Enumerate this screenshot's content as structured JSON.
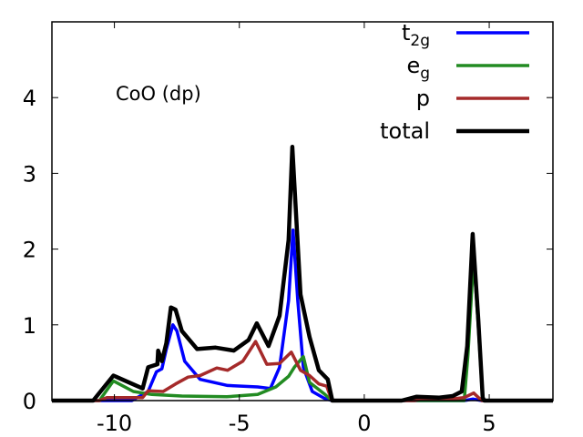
{
  "chart_data": {
    "type": "line",
    "title": "CoO (dp)",
    "xlabel": "",
    "ylabel": "",
    "xlim": [
      -12.5,
      7.55
    ],
    "ylim": [
      0,
      5
    ],
    "grid": false,
    "legend_placement": "top-right",
    "x_ticks": [
      -10,
      -5,
      0,
      5
    ],
    "x_tick_labels": [
      "-10",
      "-5",
      "0",
      "5"
    ],
    "y_ticks": [
      0,
      1,
      2,
      3,
      4
    ],
    "y_tick_labels": [
      "0",
      "1",
      "2",
      "3",
      "4"
    ],
    "series": [
      {
        "name": "t2g",
        "label_main": "t",
        "label_sub": "2g",
        "color": "#0000ff",
        "points": [
          [
            -12.5,
            0
          ],
          [
            -9.3,
            0
          ],
          [
            -8.65,
            0.12
          ],
          [
            -8.32,
            0.38
          ],
          [
            -8.1,
            0.42
          ],
          [
            -7.92,
            0.68
          ],
          [
            -7.66,
            1.0
          ],
          [
            -7.5,
            0.92
          ],
          [
            -7.19,
            0.52
          ],
          [
            -6.57,
            0.28
          ],
          [
            -5.47,
            0.2
          ],
          [
            -4.27,
            0.18
          ],
          [
            -3.76,
            0.16
          ],
          [
            -3.39,
            0.44
          ],
          [
            -3.03,
            1.32
          ],
          [
            -2.85,
            2.25
          ],
          [
            -2.66,
            1.32
          ],
          [
            -2.44,
            0.44
          ],
          [
            -2.08,
            0.12
          ],
          [
            -1.6,
            0.03
          ],
          [
            -1.3,
            0
          ],
          [
            4.0,
            0
          ],
          [
            4.35,
            0.02
          ],
          [
            4.7,
            0
          ],
          [
            7.55,
            0
          ]
        ]
      },
      {
        "name": "eg",
        "label_main": "e",
        "label_sub": "g",
        "color": "#228b22",
        "points": [
          [
            -12.5,
            0
          ],
          [
            -10.6,
            0
          ],
          [
            -10.04,
            0.26
          ],
          [
            -9.24,
            0.12
          ],
          [
            -8.5,
            0.08
          ],
          [
            -7.3,
            0.06
          ],
          [
            -5.5,
            0.05
          ],
          [
            -4.27,
            0.08
          ],
          [
            -3.54,
            0.18
          ],
          [
            -3.03,
            0.32
          ],
          [
            -2.8,
            0.44
          ],
          [
            -2.44,
            0.58
          ],
          [
            -2.19,
            0.24
          ],
          [
            -1.57,
            0.08
          ],
          [
            -1.3,
            0
          ],
          [
            4.0,
            0
          ],
          [
            4.15,
            0.6
          ],
          [
            4.38,
            1.9
          ],
          [
            4.58,
            0.9
          ],
          [
            4.74,
            0
          ],
          [
            7.55,
            0
          ]
        ]
      },
      {
        "name": "p",
        "label_main": "p",
        "label_sub": "",
        "color": "#a52a2a",
        "points": [
          [
            -12.5,
            0
          ],
          [
            -10.6,
            0
          ],
          [
            -10.3,
            0.04
          ],
          [
            -8.87,
            0.04
          ],
          [
            -8.65,
            0.13
          ],
          [
            -8.05,
            0.12
          ],
          [
            -7.55,
            0.22
          ],
          [
            -7.05,
            0.31
          ],
          [
            -6.57,
            0.33
          ],
          [
            -5.9,
            0.43
          ],
          [
            -5.47,
            0.4
          ],
          [
            -4.86,
            0.52
          ],
          [
            -4.35,
            0.78
          ],
          [
            -3.9,
            0.48
          ],
          [
            -3.39,
            0.49
          ],
          [
            -2.92,
            0.64
          ],
          [
            -2.55,
            0.4
          ],
          [
            -2.19,
            0.33
          ],
          [
            -1.82,
            0.22
          ],
          [
            -1.5,
            0.19
          ],
          [
            -1.3,
            0
          ],
          [
            2.0,
            0
          ],
          [
            2.3,
            0.02
          ],
          [
            3.5,
            0.02
          ],
          [
            4.0,
            0.04
          ],
          [
            4.38,
            0.1
          ],
          [
            4.7,
            0
          ],
          [
            7.55,
            0
          ]
        ]
      },
      {
        "name": "total",
        "label_main": "total",
        "label_sub": "",
        "color": "#000000",
        "points": [
          [
            -12.5,
            0
          ],
          [
            -10.85,
            0
          ],
          [
            -10.04,
            0.33
          ],
          [
            -8.87,
            0.16
          ],
          [
            -8.65,
            0.44
          ],
          [
            -8.28,
            0.48
          ],
          [
            -8.25,
            0.66
          ],
          [
            -8.1,
            0.52
          ],
          [
            -7.92,
            0.76
          ],
          [
            -7.74,
            1.23
          ],
          [
            -7.55,
            1.2
          ],
          [
            -7.3,
            0.92
          ],
          [
            -6.69,
            0.68
          ],
          [
            -5.95,
            0.7
          ],
          [
            -5.22,
            0.66
          ],
          [
            -4.63,
            0.8
          ],
          [
            -4.3,
            1.02
          ],
          [
            -3.83,
            0.72
          ],
          [
            -3.39,
            1.12
          ],
          [
            -3.03,
            2.12
          ],
          [
            -2.88,
            3.35
          ],
          [
            -2.55,
            1.4
          ],
          [
            -2.19,
            0.84
          ],
          [
            -1.82,
            0.4
          ],
          [
            -1.46,
            0.28
          ],
          [
            -1.28,
            0
          ],
          [
            1.5,
            0
          ],
          [
            2.08,
            0.05
          ],
          [
            3.0,
            0.04
          ],
          [
            3.54,
            0.06
          ],
          [
            3.9,
            0.12
          ],
          [
            4.12,
            0.72
          ],
          [
            4.34,
            2.2
          ],
          [
            4.56,
            1.08
          ],
          [
            4.74,
            0.04
          ],
          [
            4.8,
            0
          ],
          [
            7.55,
            0
          ]
        ]
      }
    ]
  }
}
